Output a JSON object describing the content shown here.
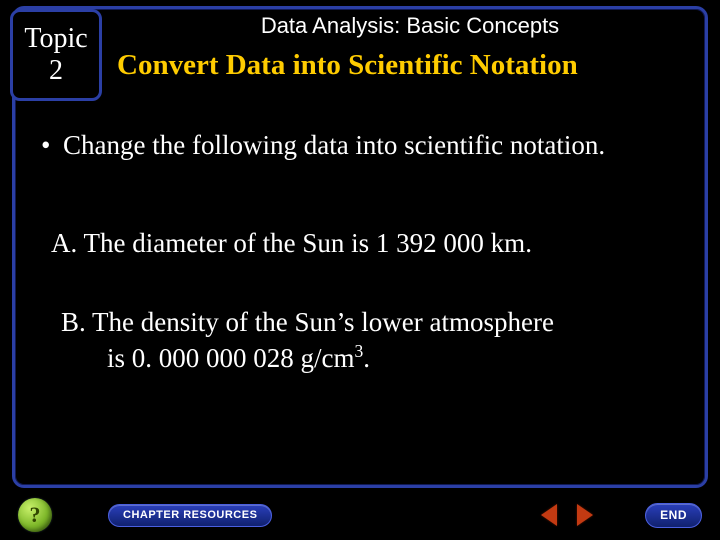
{
  "colors": {
    "background": "#000000",
    "panel_border": "#2b3fa5",
    "title_text": "#ffffff",
    "subtitle_text": "#ffcc00",
    "body_text": "#ffffff",
    "nav_button_bg_top": "#2a3fbb",
    "nav_button_bg_bottom": "#10216e",
    "triangle": "#c33a12",
    "help_bg_light": "#c8f06a",
    "help_bg_mid": "#7eb82a",
    "help_bg_dark": "#4a7a12"
  },
  "typography": {
    "header_family": "Arial",
    "header_size_pt": 16,
    "subtitle_family": "Times New Roman",
    "subtitle_size_pt": 22,
    "subtitle_weight": "bold",
    "body_family": "Times New Roman",
    "body_size_pt": 20
  },
  "topic": {
    "label": "Topic",
    "number": "2"
  },
  "header": {
    "title": "Data Analysis: Basic Concepts"
  },
  "subtitle": "Convert Data into Scientific Notation",
  "content": {
    "bullet": "Change the following data into scientific notation.",
    "item_a": "A. The diameter of the Sun is 1 392 000 km.",
    "item_b_line1": "B.  The density of the Sun’s lower atmosphere",
    "item_b_line2_prefix": "is 0. 000 000 028 g/cm",
    "item_b_exponent": "3",
    "item_b_line2_suffix": "."
  },
  "footer": {
    "help": "?",
    "chapter": "CHAPTER RESOURCES",
    "end": "END"
  }
}
